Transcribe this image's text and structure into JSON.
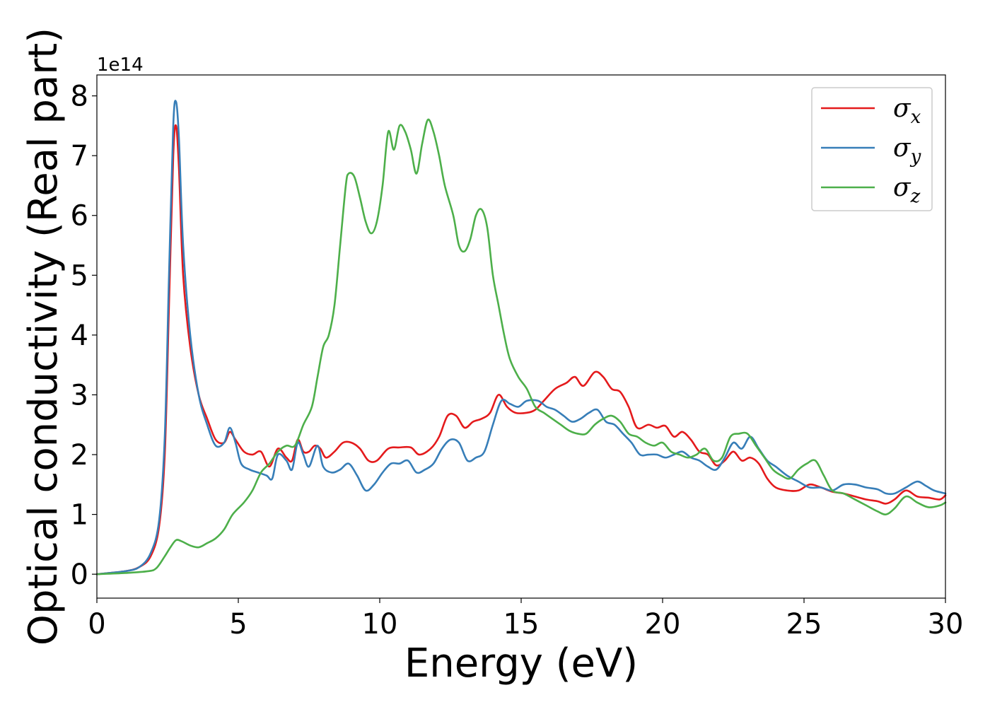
{
  "chart_data": {
    "type": "line",
    "xlabel": "Energy (eV)",
    "ylabel": "Optical conductivity (Real part)",
    "y_offset_label": "1e14",
    "xlim": [
      0,
      30
    ],
    "ylim": [
      -0.4,
      8.35
    ],
    "x_ticks": [
      0,
      5,
      10,
      15,
      20,
      25,
      30
    ],
    "y_ticks": [
      0,
      1,
      2,
      3,
      4,
      5,
      6,
      7,
      8
    ],
    "grid": false,
    "legend_position": "top-right",
    "series": [
      {
        "name": "σx",
        "legend_main": "σ",
        "legend_sub": "x",
        "color": "#e41a1c",
        "points": [
          [
            0,
            0
          ],
          [
            1,
            0.05
          ],
          [
            1.5,
            0.12
          ],
          [
            1.9,
            0.3
          ],
          [
            2.2,
            0.8
          ],
          [
            2.4,
            2.0
          ],
          [
            2.55,
            4.5
          ],
          [
            2.7,
            7.0
          ],
          [
            2.8,
            7.5
          ],
          [
            2.9,
            6.8
          ],
          [
            3.05,
            5.0
          ],
          [
            3.3,
            3.8
          ],
          [
            3.6,
            3.0
          ],
          [
            3.9,
            2.6
          ],
          [
            4.2,
            2.25
          ],
          [
            4.5,
            2.2
          ],
          [
            4.7,
            2.38
          ],
          [
            4.9,
            2.25
          ],
          [
            5.2,
            2.05
          ],
          [
            5.5,
            2.0
          ],
          [
            5.8,
            2.05
          ],
          [
            6.1,
            1.8
          ],
          [
            6.4,
            2.1
          ],
          [
            6.7,
            1.95
          ],
          [
            6.9,
            1.9
          ],
          [
            7.1,
            2.25
          ],
          [
            7.3,
            2.05
          ],
          [
            7.5,
            2.05
          ],
          [
            7.7,
            2.15
          ],
          [
            7.9,
            2.1
          ],
          [
            8.1,
            1.95
          ],
          [
            8.4,
            2.05
          ],
          [
            8.7,
            2.2
          ],
          [
            9.0,
            2.2
          ],
          [
            9.3,
            2.1
          ],
          [
            9.6,
            1.9
          ],
          [
            9.9,
            1.9
          ],
          [
            10.3,
            2.1
          ],
          [
            10.7,
            2.12
          ],
          [
            11.1,
            2.12
          ],
          [
            11.4,
            2.0
          ],
          [
            11.8,
            2.1
          ],
          [
            12.1,
            2.3
          ],
          [
            12.4,
            2.65
          ],
          [
            12.7,
            2.65
          ],
          [
            13.0,
            2.45
          ],
          [
            13.3,
            2.55
          ],
          [
            13.6,
            2.6
          ],
          [
            13.9,
            2.7
          ],
          [
            14.2,
            3.0
          ],
          [
            14.5,
            2.8
          ],
          [
            14.8,
            2.7
          ],
          [
            15.2,
            2.7
          ],
          [
            15.5,
            2.75
          ],
          [
            15.8,
            2.9
          ],
          [
            16.2,
            3.1
          ],
          [
            16.6,
            3.2
          ],
          [
            16.9,
            3.3
          ],
          [
            17.2,
            3.15
          ],
          [
            17.6,
            3.38
          ],
          [
            17.9,
            3.3
          ],
          [
            18.2,
            3.1
          ],
          [
            18.5,
            3.05
          ],
          [
            18.8,
            2.8
          ],
          [
            19.1,
            2.45
          ],
          [
            19.5,
            2.5
          ],
          [
            19.8,
            2.45
          ],
          [
            20.1,
            2.48
          ],
          [
            20.4,
            2.3
          ],
          [
            20.7,
            2.38
          ],
          [
            21.0,
            2.25
          ],
          [
            21.3,
            2.05
          ],
          [
            21.6,
            2.0
          ],
          [
            21.9,
            1.82
          ],
          [
            22.2,
            1.9
          ],
          [
            22.5,
            2.05
          ],
          [
            22.8,
            1.9
          ],
          [
            23.1,
            1.95
          ],
          [
            23.4,
            1.85
          ],
          [
            23.7,
            1.6
          ],
          [
            24.0,
            1.45
          ],
          [
            24.4,
            1.4
          ],
          [
            24.8,
            1.4
          ],
          [
            25.2,
            1.5
          ],
          [
            25.6,
            1.45
          ],
          [
            26.0,
            1.38
          ],
          [
            26.4,
            1.35
          ],
          [
            26.8,
            1.3
          ],
          [
            27.2,
            1.25
          ],
          [
            27.6,
            1.22
          ],
          [
            27.9,
            1.18
          ],
          [
            28.2,
            1.25
          ],
          [
            28.6,
            1.4
          ],
          [
            29.0,
            1.3
          ],
          [
            29.4,
            1.28
          ],
          [
            29.8,
            1.25
          ],
          [
            30.0,
            1.32
          ]
        ]
      },
      {
        "name": "σy",
        "legend_main": "σ",
        "legend_sub": "y",
        "color": "#377eb8",
        "points": [
          [
            0,
            0
          ],
          [
            1,
            0.05
          ],
          [
            1.5,
            0.12
          ],
          [
            1.9,
            0.35
          ],
          [
            2.2,
            0.9
          ],
          [
            2.4,
            2.3
          ],
          [
            2.55,
            5.0
          ],
          [
            2.7,
            7.5
          ],
          [
            2.8,
            7.9
          ],
          [
            2.9,
            7.3
          ],
          [
            3.05,
            5.5
          ],
          [
            3.3,
            4.0
          ],
          [
            3.6,
            3.0
          ],
          [
            3.9,
            2.5
          ],
          [
            4.2,
            2.15
          ],
          [
            4.5,
            2.2
          ],
          [
            4.7,
            2.45
          ],
          [
            4.9,
            2.2
          ],
          [
            5.1,
            1.85
          ],
          [
            5.4,
            1.75
          ],
          [
            5.7,
            1.7
          ],
          [
            6.0,
            1.65
          ],
          [
            6.2,
            1.6
          ],
          [
            6.4,
            2.0
          ],
          [
            6.7,
            1.9
          ],
          [
            6.9,
            1.75
          ],
          [
            7.1,
            2.2
          ],
          [
            7.3,
            2.0
          ],
          [
            7.5,
            1.8
          ],
          [
            7.8,
            2.15
          ],
          [
            8.0,
            1.8
          ],
          [
            8.3,
            1.7
          ],
          [
            8.6,
            1.75
          ],
          [
            8.9,
            1.85
          ],
          [
            9.2,
            1.65
          ],
          [
            9.5,
            1.4
          ],
          [
            9.8,
            1.5
          ],
          [
            10.1,
            1.7
          ],
          [
            10.4,
            1.85
          ],
          [
            10.7,
            1.85
          ],
          [
            11.0,
            1.9
          ],
          [
            11.3,
            1.7
          ],
          [
            11.6,
            1.75
          ],
          [
            11.9,
            1.85
          ],
          [
            12.2,
            2.1
          ],
          [
            12.5,
            2.25
          ],
          [
            12.8,
            2.2
          ],
          [
            13.1,
            1.9
          ],
          [
            13.4,
            1.95
          ],
          [
            13.7,
            2.05
          ],
          [
            14.0,
            2.5
          ],
          [
            14.3,
            2.9
          ],
          [
            14.6,
            2.85
          ],
          [
            14.9,
            2.8
          ],
          [
            15.2,
            2.9
          ],
          [
            15.6,
            2.9
          ],
          [
            15.9,
            2.8
          ],
          [
            16.2,
            2.75
          ],
          [
            16.5,
            2.65
          ],
          [
            16.8,
            2.55
          ],
          [
            17.1,
            2.6
          ],
          [
            17.4,
            2.7
          ],
          [
            17.7,
            2.75
          ],
          [
            18.0,
            2.55
          ],
          [
            18.3,
            2.5
          ],
          [
            18.6,
            2.35
          ],
          [
            18.9,
            2.2
          ],
          [
            19.2,
            2.0
          ],
          [
            19.5,
            2.0
          ],
          [
            19.8,
            2.0
          ],
          [
            20.1,
            1.95
          ],
          [
            20.4,
            2.0
          ],
          [
            20.7,
            2.05
          ],
          [
            21.0,
            1.95
          ],
          [
            21.3,
            1.9
          ],
          [
            21.6,
            1.8
          ],
          [
            21.9,
            1.75
          ],
          [
            22.2,
            1.95
          ],
          [
            22.5,
            2.2
          ],
          [
            22.8,
            2.1
          ],
          [
            23.1,
            2.3
          ],
          [
            23.4,
            2.1
          ],
          [
            23.7,
            1.9
          ],
          [
            24.0,
            1.8
          ],
          [
            24.4,
            1.65
          ],
          [
            24.8,
            1.55
          ],
          [
            25.2,
            1.45
          ],
          [
            25.6,
            1.45
          ],
          [
            26.0,
            1.4
          ],
          [
            26.4,
            1.5
          ],
          [
            26.8,
            1.5
          ],
          [
            27.2,
            1.45
          ],
          [
            27.6,
            1.42
          ],
          [
            27.9,
            1.35
          ],
          [
            28.2,
            1.35
          ],
          [
            28.6,
            1.45
          ],
          [
            29.0,
            1.55
          ],
          [
            29.3,
            1.48
          ],
          [
            29.6,
            1.4
          ],
          [
            30.0,
            1.35
          ]
        ]
      },
      {
        "name": "σz",
        "legend_main": "σ",
        "legend_sub": "z",
        "color": "#4daf4a",
        "points": [
          [
            0,
            0
          ],
          [
            1,
            0.02
          ],
          [
            1.8,
            0.05
          ],
          [
            2.1,
            0.1
          ],
          [
            2.4,
            0.3
          ],
          [
            2.6,
            0.45
          ],
          [
            2.8,
            0.57
          ],
          [
            3.0,
            0.55
          ],
          [
            3.3,
            0.48
          ],
          [
            3.6,
            0.45
          ],
          [
            3.9,
            0.52
          ],
          [
            4.2,
            0.6
          ],
          [
            4.5,
            0.75
          ],
          [
            4.8,
            1.0
          ],
          [
            5.2,
            1.2
          ],
          [
            5.5,
            1.4
          ],
          [
            5.8,
            1.7
          ],
          [
            6.1,
            1.85
          ],
          [
            6.4,
            2.05
          ],
          [
            6.7,
            2.15
          ],
          [
            7.0,
            2.15
          ],
          [
            7.3,
            2.5
          ],
          [
            7.6,
            2.8
          ],
          [
            7.8,
            3.3
          ],
          [
            8.0,
            3.8
          ],
          [
            8.2,
            4.0
          ],
          [
            8.4,
            4.5
          ],
          [
            8.6,
            5.5
          ],
          [
            8.8,
            6.5
          ],
          [
            8.9,
            6.7
          ],
          [
            9.1,
            6.65
          ],
          [
            9.3,
            6.3
          ],
          [
            9.5,
            5.9
          ],
          [
            9.7,
            5.7
          ],
          [
            9.9,
            5.9
          ],
          [
            10.1,
            6.5
          ],
          [
            10.3,
            7.4
          ],
          [
            10.5,
            7.1
          ],
          [
            10.7,
            7.5
          ],
          [
            10.9,
            7.4
          ],
          [
            11.1,
            7.1
          ],
          [
            11.3,
            6.7
          ],
          [
            11.5,
            7.2
          ],
          [
            11.7,
            7.6
          ],
          [
            11.9,
            7.4
          ],
          [
            12.1,
            7.0
          ],
          [
            12.3,
            6.5
          ],
          [
            12.6,
            6.0
          ],
          [
            12.8,
            5.5
          ],
          [
            13.0,
            5.4
          ],
          [
            13.2,
            5.6
          ],
          [
            13.4,
            6.0
          ],
          [
            13.6,
            6.1
          ],
          [
            13.8,
            5.8
          ],
          [
            14.0,
            5.0
          ],
          [
            14.2,
            4.5
          ],
          [
            14.4,
            4.0
          ],
          [
            14.6,
            3.6
          ],
          [
            14.9,
            3.3
          ],
          [
            15.2,
            3.1
          ],
          [
            15.5,
            2.8
          ],
          [
            15.8,
            2.7
          ],
          [
            16.1,
            2.6
          ],
          [
            16.4,
            2.5
          ],
          [
            16.7,
            2.4
          ],
          [
            17.0,
            2.35
          ],
          [
            17.3,
            2.35
          ],
          [
            17.6,
            2.5
          ],
          [
            17.9,
            2.6
          ],
          [
            18.2,
            2.65
          ],
          [
            18.5,
            2.55
          ],
          [
            18.8,
            2.35
          ],
          [
            19.1,
            2.3
          ],
          [
            19.4,
            2.2
          ],
          [
            19.7,
            2.15
          ],
          [
            20.0,
            2.2
          ],
          [
            20.3,
            2.05
          ],
          [
            20.6,
            2.0
          ],
          [
            20.9,
            1.95
          ],
          [
            21.2,
            2.0
          ],
          [
            21.5,
            2.1
          ],
          [
            21.8,
            1.9
          ],
          [
            22.1,
            1.95
          ],
          [
            22.4,
            2.3
          ],
          [
            22.7,
            2.35
          ],
          [
            23.0,
            2.35
          ],
          [
            23.3,
            2.15
          ],
          [
            23.6,
            1.95
          ],
          [
            23.9,
            1.75
          ],
          [
            24.2,
            1.65
          ],
          [
            24.5,
            1.6
          ],
          [
            24.8,
            1.75
          ],
          [
            25.1,
            1.85
          ],
          [
            25.4,
            1.9
          ],
          [
            25.7,
            1.65
          ],
          [
            26.0,
            1.4
          ],
          [
            26.4,
            1.35
          ],
          [
            26.8,
            1.25
          ],
          [
            27.2,
            1.15
          ],
          [
            27.6,
            1.05
          ],
          [
            27.9,
            1.0
          ],
          [
            28.2,
            1.1
          ],
          [
            28.6,
            1.3
          ],
          [
            29.0,
            1.2
          ],
          [
            29.4,
            1.12
          ],
          [
            29.8,
            1.15
          ],
          [
            30.0,
            1.2
          ]
        ]
      }
    ]
  }
}
